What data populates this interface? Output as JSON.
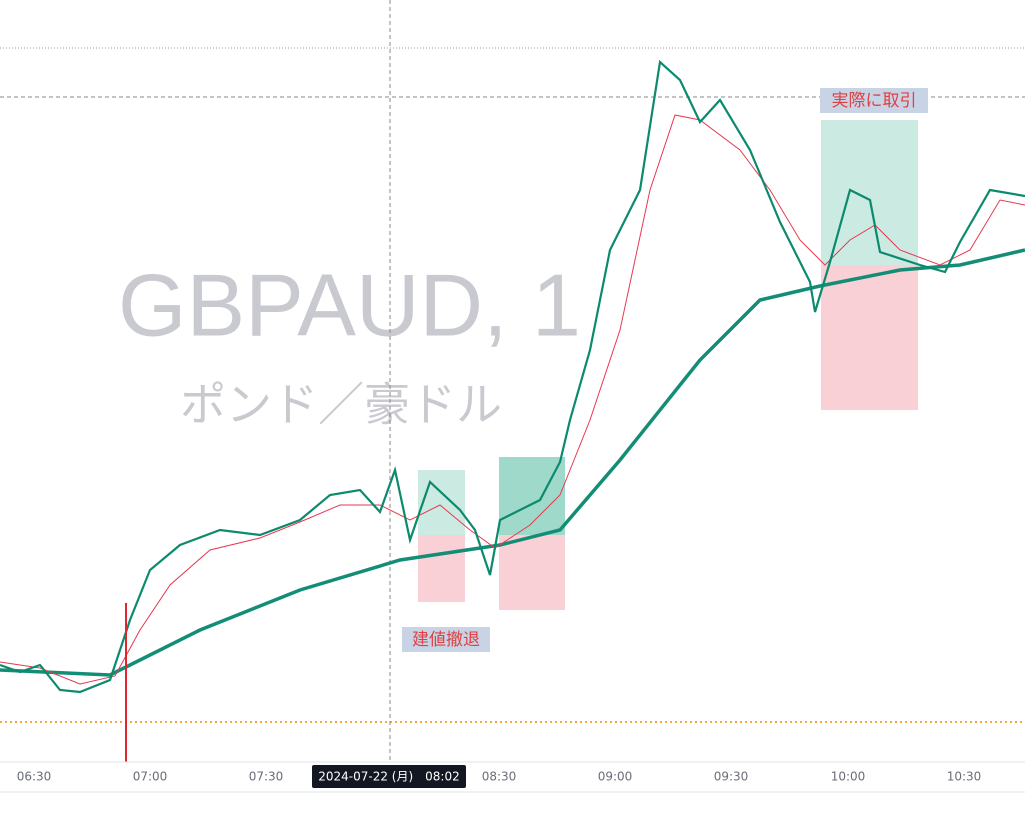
{
  "watermark": {
    "symbol": "GBPAUD, 1",
    "description": "ポンド／豪ドル"
  },
  "annotations": {
    "actual_trade": "実際に取引",
    "breakeven_exit": "建値撤退"
  },
  "time_axis": {
    "labels": [
      "06:30",
      "07:00",
      "07:30",
      "08:30",
      "09:00",
      "09:30",
      "10:00",
      "10:30"
    ],
    "crosshair": "2024-07-22 (月)　08:02"
  }
}
